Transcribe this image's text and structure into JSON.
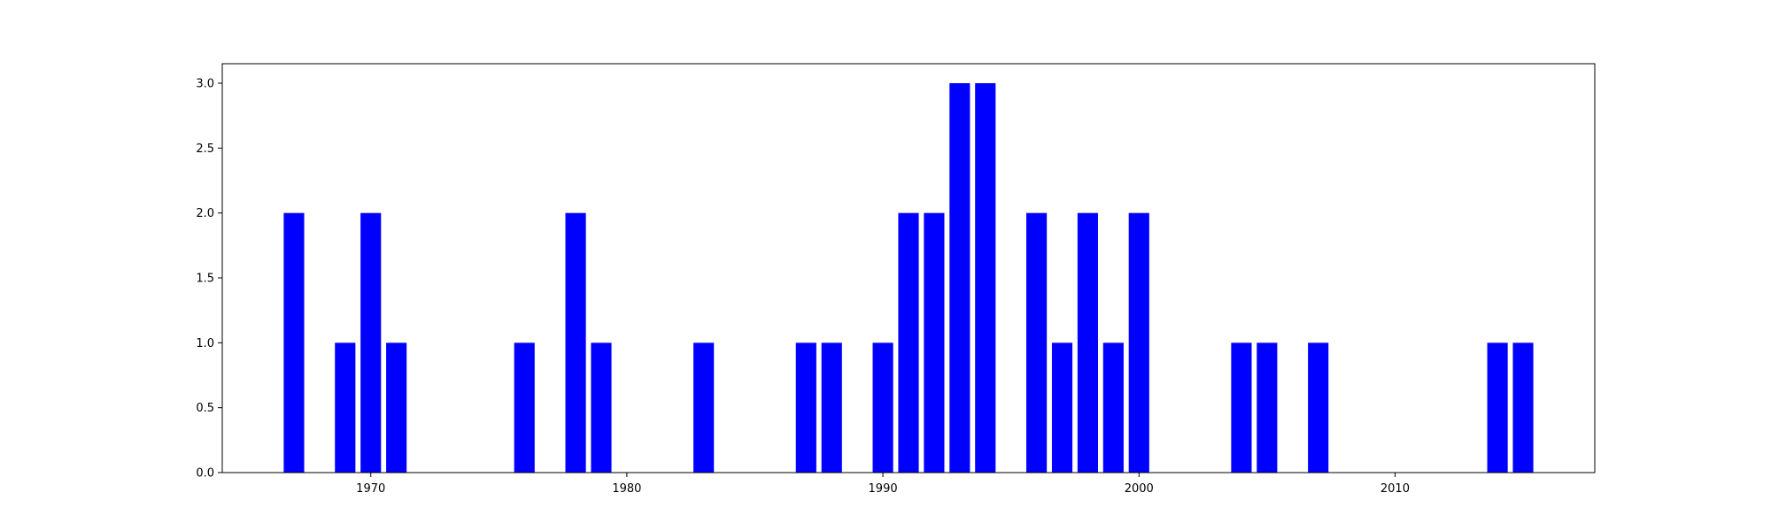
{
  "chart_data": {
    "type": "bar",
    "title": "",
    "xlabel": "",
    "ylabel": "",
    "x": [
      1967,
      1969,
      1970,
      1971,
      1976,
      1978,
      1979,
      1983,
      1987,
      1988,
      1990,
      1991,
      1992,
      1993,
      1994,
      1996,
      1997,
      1998,
      1999,
      2000,
      2004,
      2005,
      2007,
      2014,
      2015
    ],
    "values": [
      2,
      1,
      2,
      1,
      1,
      2,
      1,
      1,
      1,
      1,
      1,
      2,
      2,
      3,
      3,
      2,
      1,
      2,
      1,
      2,
      1,
      1,
      1,
      1,
      1
    ],
    "xlim": [
      1964.2,
      2017.8
    ],
    "ylim": [
      0,
      3.15
    ],
    "xticks": [
      1970,
      1980,
      1990,
      2000,
      2010
    ],
    "xtick_labels": [
      "1970",
      "1980",
      "1990",
      "2000",
      "2010"
    ],
    "yticks": [
      0,
      0.5,
      1,
      1.5,
      2,
      2.5,
      3
    ],
    "ytick_labels": [
      "0.0",
      "0.5",
      "1.0",
      "1.5",
      "2.0",
      "2.5",
      "3.0"
    ],
    "bar_width": 0.8,
    "grid": false,
    "legend": "none",
    "colors": {
      "bar": "#0000ff",
      "axes": "#000000",
      "background": "#ffffff"
    }
  }
}
